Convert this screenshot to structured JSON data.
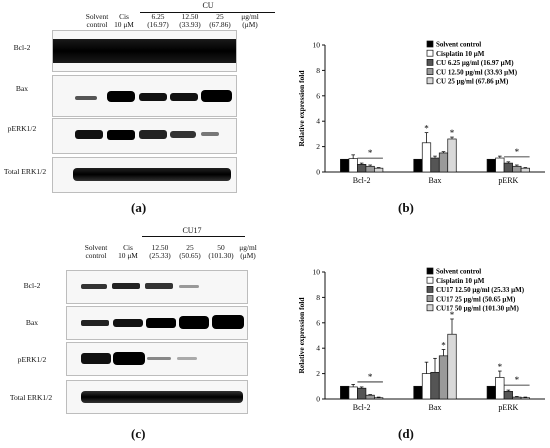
{
  "panel_a": {
    "label": "(a)",
    "treatment_group": "CU",
    "unit_line1": "μg/ml",
    "unit_line2": "(μM)",
    "columns": [
      {
        "line1": "Solvent",
        "line2": "control"
      },
      {
        "line1": "Cis",
        "line2": "10 μM"
      },
      {
        "line1": "6.25",
        "line2": "(16.97)"
      },
      {
        "line1": "12.50",
        "line2": "(33.93)"
      },
      {
        "line1": "25",
        "line2": "(67.86)"
      }
    ],
    "rows": [
      "Bcl-2",
      "Bax",
      "pERK1/2",
      "Total ERK1/2"
    ]
  },
  "panel_c": {
    "label": "(c)",
    "treatment_group": "CU17",
    "unit_line1": "μg/ml",
    "unit_line2": "(μM)",
    "columns": [
      {
        "line1": "Solvent",
        "line2": "control"
      },
      {
        "line1": "Cis",
        "line2": "10 μM"
      },
      {
        "line1": "12.50",
        "line2": "(25.33)"
      },
      {
        "line1": "25",
        "line2": "(50.65)"
      },
      {
        "line1": "50",
        "line2": "(101.30)"
      }
    ],
    "rows": [
      "Bcl-2",
      "Bax",
      "pERK1/2",
      "Total ERK1/2"
    ]
  },
  "panel_b_label": "(b)",
  "panel_d_label": "(d)",
  "chart_data": [
    {
      "type": "bar",
      "panel": "b",
      "ylabel": "Relative expression fold",
      "ylim": [
        0,
        10
      ],
      "yticks": [
        0,
        2,
        4,
        6,
        8,
        10
      ],
      "categories": [
        "Bcl-2",
        "Bax",
        "pERK"
      ],
      "legend_placement": "top-right",
      "colors": [
        "#000000",
        "#ffffff",
        "#555555",
        "#9a9a9a",
        "#d9d9d9"
      ],
      "series": [
        {
          "name": "Solvent control",
          "values": [
            1.0,
            1.0,
            1.0
          ],
          "errors": [
            0,
            0,
            0
          ]
        },
        {
          "name": "Cisplatin 10 μM",
          "values": [
            1.05,
            2.3,
            1.1
          ],
          "errors": [
            0.3,
            0.8,
            0.15
          ]
        },
        {
          "name": "CU 6.25 μg/ml (16.97 μM)",
          "values": [
            0.6,
            1.1,
            0.7
          ],
          "errors": [
            0.1,
            0.15,
            0.1
          ]
        },
        {
          "name": "CU 12.50 μg/ml (33.93 μM)",
          "values": [
            0.45,
            1.5,
            0.45
          ],
          "errors": [
            0.1,
            0.1,
            0.1
          ]
        },
        {
          "name": "CU 25 μg/ml (67.86 μM)",
          "values": [
            0.3,
            2.6,
            0.3
          ],
          "errors": [
            0.05,
            0.15,
            0.05
          ]
        }
      ],
      "annotations": [
        {
          "text": "*",
          "category": "Bcl-2",
          "type": "bracket"
        },
        {
          "text": "*",
          "category": "Bax",
          "series": 1
        },
        {
          "text": "*",
          "category": "Bax",
          "series": 4
        },
        {
          "text": "*",
          "category": "pERK",
          "type": "bracket"
        }
      ]
    },
    {
      "type": "bar",
      "panel": "d",
      "ylabel": "Relative expression fold",
      "ylim": [
        0,
        10
      ],
      "yticks": [
        0,
        2,
        4,
        6,
        8,
        10
      ],
      "categories": [
        "Bcl-2",
        "Bax",
        "pERK"
      ],
      "legend_placement": "top-right",
      "colors": [
        "#000000",
        "#ffffff",
        "#555555",
        "#9a9a9a",
        "#d9d9d9"
      ],
      "series": [
        {
          "name": "Solvent control",
          "values": [
            1.0,
            1.0,
            1.0
          ],
          "errors": [
            0,
            0,
            0
          ]
        },
        {
          "name": "Cisplatin 10 μM",
          "values": [
            0.95,
            2.0,
            1.7
          ],
          "errors": [
            0.2,
            0.9,
            0.5
          ]
        },
        {
          "name": "CU17 12.50 μg/ml (25.33 μM)",
          "values": [
            0.85,
            2.1,
            0.6
          ],
          "errors": [
            0.1,
            1.1,
            0.1
          ]
        },
        {
          "name": "CU17 25 μg/ml (50.65 μM)",
          "values": [
            0.3,
            3.4,
            0.15
          ],
          "errors": [
            0.05,
            0.5,
            0.05
          ]
        },
        {
          "name": "CU17 50 μg/ml (101.30 μM)",
          "values": [
            0.1,
            5.1,
            0.1
          ],
          "errors": [
            0.05,
            1.2,
            0.05
          ]
        }
      ],
      "annotations": [
        {
          "text": "*",
          "category": "Bcl-2",
          "type": "bracket"
        },
        {
          "text": "*",
          "category": "Bax",
          "series": 3
        },
        {
          "text": "*",
          "category": "Bax",
          "series": 4
        },
        {
          "text": "*",
          "category": "pERK",
          "series": 1
        },
        {
          "text": "*",
          "category": "pERK",
          "type": "bracket"
        }
      ]
    }
  ]
}
